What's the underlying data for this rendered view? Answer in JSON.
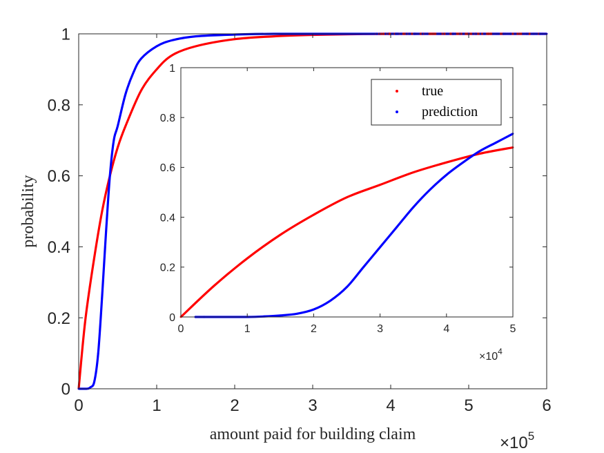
{
  "chart_data": [
    {
      "id": "main",
      "type": "line",
      "xlabel": "amount paid for building claim",
      "ylabel": "probability",
      "x_exponent_label": "×10",
      "x_exponent": "5",
      "xlim": [
        0,
        600000
      ],
      "ylim": [
        0,
        1
      ],
      "xticks": [
        0,
        100000,
        200000,
        300000,
        400000,
        500000,
        600000
      ],
      "xtick_labels": [
        "0",
        "1",
        "2",
        "3",
        "4",
        "5",
        "6"
      ],
      "yticks": [
        0,
        0.2,
        0.4,
        0.6,
        0.8,
        1
      ],
      "ytick_labels": [
        "0",
        "0.2",
        "0.4",
        "0.6",
        "0.8",
        "1"
      ],
      "grid": false,
      "series": [
        {
          "name": "true",
          "color": "#ff0000",
          "x": [
            0,
            5000,
            10000,
            20000,
            30000,
            40000,
            50000,
            60000,
            80000,
            100000,
            120000,
            150000,
            200000,
            250000,
            300000,
            350000,
            400000,
            500000,
            600000
          ],
          "y": [
            0,
            0.12,
            0.22,
            0.37,
            0.5,
            0.6,
            0.68,
            0.74,
            0.84,
            0.9,
            0.94,
            0.965,
            0.985,
            0.993,
            0.997,
            0.999,
            1,
            1,
            1
          ]
        },
        {
          "name": "prediction",
          "color": "#0000ff",
          "x": [
            0,
            10000,
            15000,
            20000,
            25000,
            30000,
            35000,
            40000,
            45000,
            50000,
            60000,
            70000,
            80000,
            100000,
            120000,
            150000,
            200000,
            250000,
            300000,
            400000,
            600000
          ],
          "y": [
            0,
            0,
            0.004,
            0.02,
            0.1,
            0.26,
            0.44,
            0.6,
            0.7,
            0.74,
            0.83,
            0.89,
            0.93,
            0.965,
            0.982,
            0.993,
            0.998,
            1,
            1,
            1,
            1
          ]
        }
      ]
    },
    {
      "id": "inset",
      "type": "line",
      "x_exponent_label": "×10",
      "x_exponent": "4",
      "xlim": [
        0,
        50000
      ],
      "ylim": [
        0,
        1
      ],
      "xticks": [
        0,
        10000,
        20000,
        30000,
        40000,
        50000
      ],
      "xtick_labels": [
        "0",
        "1",
        "2",
        "3",
        "4",
        "5"
      ],
      "yticks": [
        0,
        0.2,
        0.4,
        0.6,
        0.8,
        1
      ],
      "ytick_labels": [
        "0",
        "0.2",
        "0.4",
        "0.6",
        "0.8",
        "1"
      ],
      "legend": {
        "placement": "top-right",
        "entries": [
          "true",
          "prediction"
        ]
      },
      "grid": false,
      "series": [
        {
          "name": "true",
          "color": "#ff0000",
          "x": [
            0,
            5000,
            10000,
            15000,
            20000,
            25000,
            30000,
            35000,
            40000,
            45000,
            50000
          ],
          "y": [
            0,
            0.125,
            0.235,
            0.33,
            0.41,
            0.48,
            0.53,
            0.58,
            0.62,
            0.655,
            0.68
          ]
        },
        {
          "name": "prediction",
          "color": "#0000ff",
          "x": [
            2200,
            3500,
            6500,
            10000,
            12500,
            15000,
            17500,
            20000,
            22500,
            25000,
            27500,
            30000,
            32500,
            35000,
            37500,
            40000,
            42500,
            45000,
            47500,
            50000
          ],
          "y": [
            0,
            0,
            0,
            0,
            0.002,
            0.006,
            0.013,
            0.03,
            0.065,
            0.12,
            0.2,
            0.28,
            0.36,
            0.44,
            0.51,
            0.57,
            0.62,
            0.665,
            0.7,
            0.735
          ]
        }
      ]
    }
  ]
}
